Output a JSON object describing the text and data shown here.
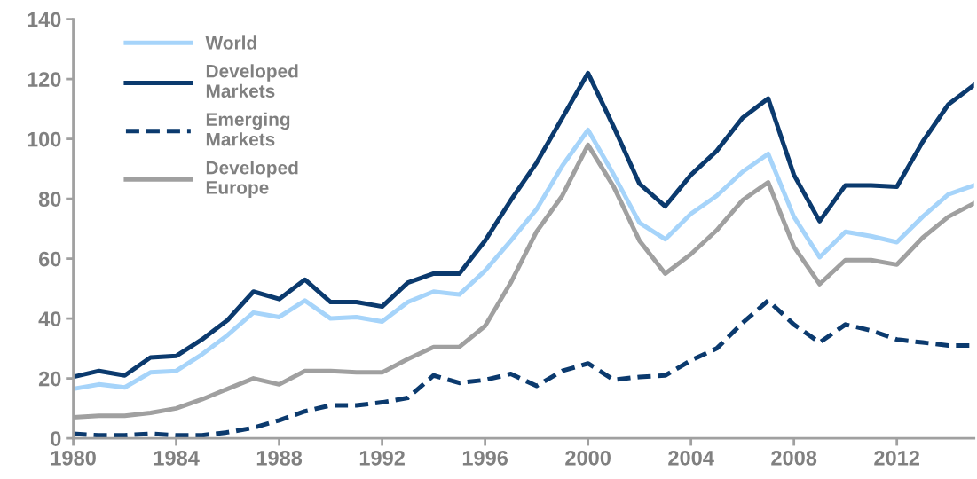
{
  "chart_data": {
    "type": "line",
    "x": [
      1980,
      1981,
      1982,
      1983,
      1984,
      1985,
      1986,
      1987,
      1988,
      1989,
      1990,
      1991,
      1992,
      1993,
      1994,
      1995,
      1996,
      1997,
      1998,
      1999,
      2000,
      2001,
      2002,
      2003,
      2004,
      2005,
      2006,
      2007,
      2008,
      2009,
      2010,
      2011,
      2012,
      2013,
      2014,
      2015
    ],
    "series": [
      {
        "name": "World",
        "color": "#a6d4fa",
        "line_style": "solid",
        "values": [
          16.5,
          18,
          17,
          22,
          22.5,
          28,
          34.5,
          42,
          40.5,
          46,
          40,
          40.5,
          39,
          45.5,
          49,
          48,
          56,
          66,
          76.5,
          91,
          103,
          88,
          72,
          66.5,
          75,
          81,
          89,
          95,
          74,
          60.5,
          69,
          67.5,
          65.5,
          74,
          81.5,
          84.5
        ]
      },
      {
        "name": "Developed\nMarkets",
        "color": "#0b3a6e",
        "line_style": "solid",
        "values": [
          20.5,
          22.5,
          21,
          27,
          27.5,
          33,
          39.5,
          49,
          46.5,
          53,
          45.5,
          45.5,
          44,
          52,
          55,
          55,
          66,
          79.5,
          92,
          107,
          122,
          104,
          85,
          77.5,
          88,
          96,
          107,
          113.5,
          88,
          72.5,
          84.5,
          84.5,
          84,
          99,
          111.5,
          118
        ]
      },
      {
        "name": "Emerging\nMarkets",
        "color": "#0b3a6e",
        "line_style": "dashed",
        "values": [
          1.5,
          1,
          1,
          1.5,
          1,
          1,
          2,
          3.5,
          6,
          9,
          11,
          11,
          12,
          13.5,
          21,
          18.5,
          19.5,
          21.5,
          17.5,
          22.5,
          25,
          19.5,
          20.5,
          21,
          26,
          30,
          38.5,
          46,
          38,
          32,
          38,
          36,
          33,
          32,
          31,
          31
        ]
      },
      {
        "name": "Developed\nEurope",
        "color": "#a0a0a0",
        "line_style": "solid",
        "values": [
          7,
          7.5,
          7.5,
          8.5,
          10,
          13,
          16.5,
          20,
          18,
          22.5,
          22.5,
          22,
          22,
          26.5,
          30.5,
          30.5,
          37.5,
          52,
          69,
          81,
          98,
          84,
          66,
          55,
          61.5,
          69.5,
          79.5,
          85.5,
          64,
          51.5,
          59.5,
          59.5,
          58,
          67,
          74,
          78.5
        ]
      }
    ],
    "xlim": [
      1980,
      2015
    ],
    "xticks": [
      1980,
      1984,
      1988,
      1992,
      1996,
      2000,
      2004,
      2008,
      2012
    ],
    "ylim": [
      0,
      140
    ],
    "yticks": [
      0,
      20,
      40,
      60,
      80,
      100,
      120,
      140
    ],
    "grid": false,
    "legend": "top left"
  }
}
